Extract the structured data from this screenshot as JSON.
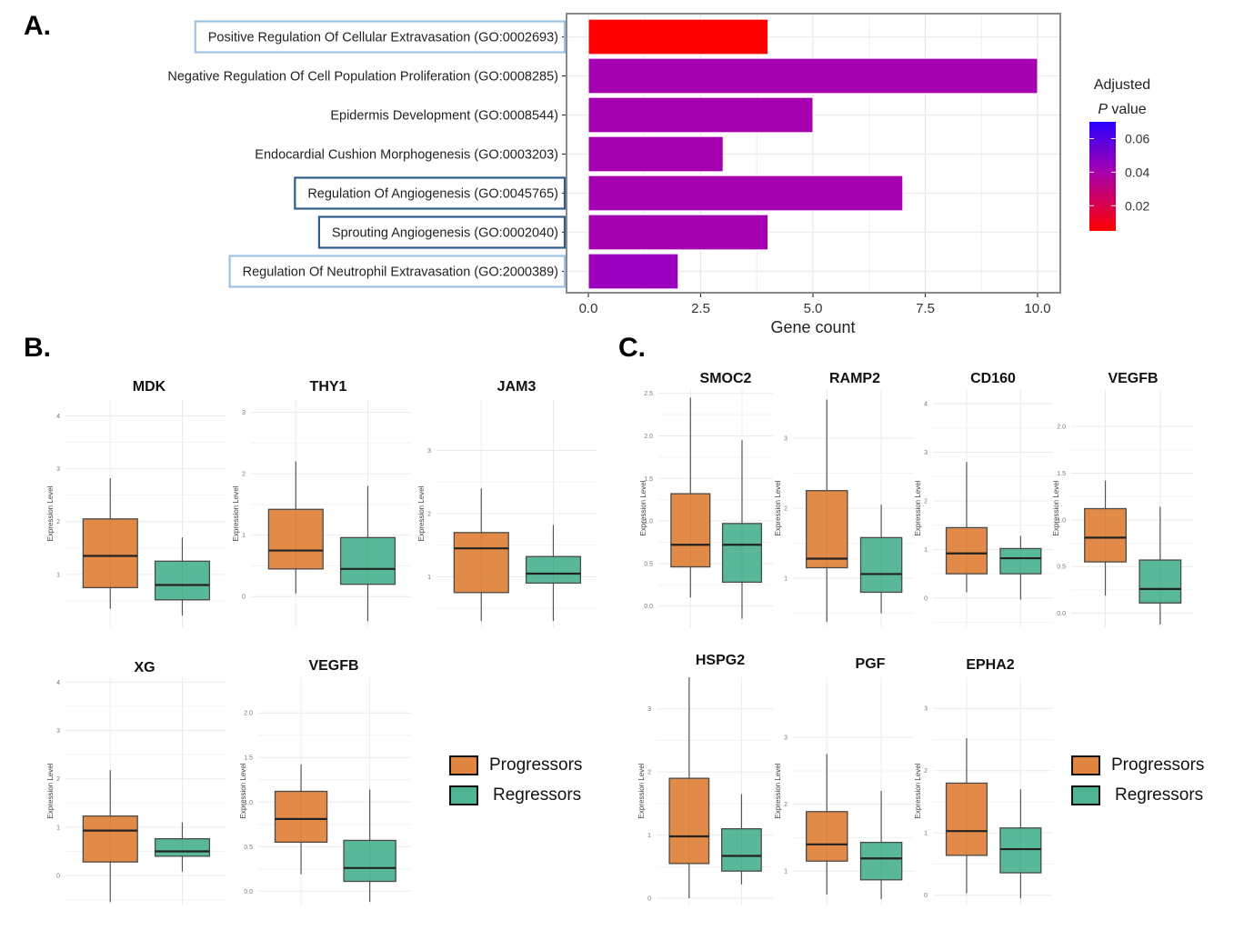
{
  "figure": {
    "panels": {
      "a_label": "A.",
      "b_label": "B.",
      "c_label": "C."
    },
    "group_legend": {
      "items": [
        {
          "label": "Progressors",
          "color": "#E0853F"
        },
        {
          "label": "Regressors",
          "color": "#4FB493"
        }
      ]
    }
  },
  "chart_data": [
    {
      "id": "A",
      "type": "bar",
      "orientation": "horizontal",
      "title": "",
      "xlabel": "Gene count",
      "ylabel": "",
      "xlim": [
        0,
        10
      ],
      "xticks": [
        "0.0",
        "2.5",
        "5.0",
        "7.5",
        "10.0"
      ],
      "grid": true,
      "categories": [
        "Positive Regulation Of Cellular Extravasation (GO:0002693)",
        "Negative Regulation Of Cell Population Proliferation (GO:0008285)",
        "Epidermis Development (GO:0008544)",
        "Endocardial Cushion Morphogenesis (GO:0003203)",
        "Regulation Of Angiogenesis (GO:0045765)",
        "Sprouting Angiogenesis (GO:0002040)",
        "Regulation Of Neutrophil Extravasation (GO:2000389)"
      ],
      "values": [
        4,
        10,
        5,
        3,
        7,
        4,
        2
      ],
      "bar_colors": [
        "#FF0000",
        "#A500B0",
        "#A500B0",
        "#A500B0",
        "#A500B0",
        "#A500B0",
        "#9B00BE"
      ],
      "highlight_boxes": [
        "light",
        "none",
        "none",
        "none",
        "dark",
        "dark",
        "light"
      ],
      "highlight_colors": {
        "light": "#9CC3E4",
        "dark": "#2F5C8A"
      },
      "colorbar": {
        "title_line1": "Adjusted",
        "title_p": "P",
        "title_rest": " value",
        "ticks": [
          "0.06",
          "0.04",
          "0.02"
        ],
        "tick_values": [
          0.06,
          0.04,
          0.02
        ],
        "range": [
          0.005,
          0.07
        ],
        "color_low": "#FF0000",
        "color_high": "#2A00FF",
        "placement": "right"
      }
    },
    {
      "id": "B",
      "type": "boxplot",
      "ylabel": "Expression Level",
      "groups": [
        "Progressors",
        "Regressors"
      ],
      "panels": [
        {
          "gene": "MDK",
          "ylim": [
            0,
            4.3
          ],
          "yticks": [
            "1",
            "2",
            "3",
            "4"
          ],
          "ytick_values": [
            1,
            2,
            3,
            4
          ],
          "boxes": [
            {
              "whisker_low": 0.35,
              "q1": 0.75,
              "median": 1.35,
              "q3": 2.05,
              "whisker_high": 2.82
            },
            {
              "whisker_low": 0.22,
              "q1": 0.52,
              "median": 0.8,
              "q3": 1.25,
              "whisker_high": 1.7
            }
          ]
        },
        {
          "gene": "THY1",
          "ylim": [
            -0.5,
            3.2
          ],
          "yticks": [
            "0",
            "1",
            "2",
            "3"
          ],
          "ytick_values": [
            0,
            1,
            2,
            3
          ],
          "boxes": [
            {
              "whisker_low": 0.05,
              "q1": 0.45,
              "median": 0.75,
              "q3": 1.42,
              "whisker_high": 2.2
            },
            {
              "whisker_low": -0.4,
              "q1": 0.2,
              "median": 0.45,
              "q3": 0.96,
              "whisker_high": 1.8
            }
          ]
        },
        {
          "gene": "JAM3",
          "ylim": [
            0.2,
            3.8
          ],
          "yticks": [
            "1",
            "2",
            "3"
          ],
          "ytick_values": [
            1,
            2,
            3
          ],
          "boxes": [
            {
              "whisker_low": 0.3,
              "q1": 0.75,
              "median": 1.45,
              "q3": 1.7,
              "whisker_high": 2.4
            },
            {
              "whisker_low": 0.3,
              "q1": 0.9,
              "median": 1.05,
              "q3": 1.32,
              "whisker_high": 1.82
            }
          ]
        },
        {
          "gene": "XG",
          "ylim": [
            -0.6,
            4.1
          ],
          "yticks": [
            "0",
            "1",
            "2",
            "3",
            "4"
          ],
          "ytick_values": [
            0,
            1,
            2,
            3,
            4
          ],
          "boxes": [
            {
              "whisker_low": -0.55,
              "q1": 0.28,
              "median": 0.93,
              "q3": 1.23,
              "whisker_high": 2.18
            },
            {
              "whisker_low": 0.08,
              "q1": 0.4,
              "median": 0.5,
              "q3": 0.76,
              "whisker_high": 1.1
            }
          ]
        },
        {
          "gene": "VEGFB",
          "ylim": [
            -0.15,
            2.4
          ],
          "yticks": [
            "0.0",
            "0.5",
            "1.0",
            "1.5",
            "2.0"
          ],
          "ytick_values": [
            0,
            0.5,
            1,
            1.5,
            2
          ],
          "boxes": [
            {
              "whisker_low": 0.19,
              "q1": 0.55,
              "median": 0.81,
              "q3": 1.12,
              "whisker_high": 1.42
            },
            {
              "whisker_low": -0.12,
              "q1": 0.11,
              "median": 0.26,
              "q3": 0.57,
              "whisker_high": 1.14
            }
          ]
        }
      ]
    },
    {
      "id": "C",
      "type": "boxplot",
      "ylabel": "Expression Level",
      "groups": [
        "Progressors",
        "Regressors"
      ],
      "panels": [
        {
          "gene": "SMOC2",
          "ylim": [
            -0.25,
            2.55
          ],
          "yticks": [
            "0.0",
            "0.5",
            "1.0",
            "1.5",
            "2.0",
            "2.5"
          ],
          "ytick_values": [
            0,
            0.5,
            1,
            1.5,
            2,
            2.5
          ],
          "boxes": [
            {
              "whisker_low": 0.1,
              "q1": 0.46,
              "median": 0.72,
              "q3": 1.32,
              "whisker_high": 2.45
            },
            {
              "whisker_low": -0.15,
              "q1": 0.28,
              "median": 0.72,
              "q3": 0.97,
              "whisker_high": 1.95
            }
          ]
        },
        {
          "gene": "RAMP2",
          "ylim": [
            0.3,
            3.7
          ],
          "yticks": [
            "1",
            "2",
            "3"
          ],
          "ytick_values": [
            1,
            2,
            3
          ],
          "boxes": [
            {
              "whisker_low": 0.38,
              "q1": 1.15,
              "median": 1.28,
              "q3": 2.25,
              "whisker_high": 3.55
            },
            {
              "whisker_low": 0.5,
              "q1": 0.8,
              "median": 1.06,
              "q3": 1.58,
              "whisker_high": 2.05
            }
          ]
        },
        {
          "gene": "CD160",
          "ylim": [
            -0.6,
            4.3
          ],
          "yticks": [
            "0",
            "1",
            "2",
            "3",
            "4"
          ],
          "ytick_values": [
            0,
            1,
            2,
            3,
            4
          ],
          "boxes": [
            {
              "whisker_low": 0.12,
              "q1": 0.5,
              "median": 0.92,
              "q3": 1.45,
              "whisker_high": 2.8
            },
            {
              "whisker_low": -0.03,
              "q1": 0.5,
              "median": 0.82,
              "q3": 1.02,
              "whisker_high": 1.28
            }
          ]
        },
        {
          "gene": "VEGFB",
          "ylim": [
            -0.15,
            2.4
          ],
          "yticks": [
            "0.0",
            "0.5",
            "1.0",
            "1.5",
            "2.0"
          ],
          "ytick_values": [
            0,
            0.5,
            1,
            1.5,
            2
          ],
          "boxes": [
            {
              "whisker_low": 0.19,
              "q1": 0.55,
              "median": 0.81,
              "q3": 1.12,
              "whisker_high": 1.42
            },
            {
              "whisker_low": -0.12,
              "q1": 0.11,
              "median": 0.26,
              "q3": 0.57,
              "whisker_high": 1.14
            }
          ]
        },
        {
          "gene": "HSPG2",
          "ylim": [
            -0.1,
            3.5
          ],
          "yticks": [
            "0",
            "1",
            "2",
            "3"
          ],
          "ytick_values": [
            0,
            1,
            2,
            3
          ],
          "boxes": [
            {
              "whisker_low": 0.0,
              "q1": 0.55,
              "median": 0.98,
              "q3": 1.9,
              "whisker_high": 3.5
            },
            {
              "whisker_low": 0.22,
              "q1": 0.43,
              "median": 0.67,
              "q3": 1.1,
              "whisker_high": 1.65
            }
          ]
        },
        {
          "gene": "PGF",
          "ylim": [
            0.5,
            3.9
          ],
          "yticks": [
            "1",
            "2",
            "3"
          ],
          "ytick_values": [
            1,
            2,
            3
          ],
          "boxes": [
            {
              "whisker_low": 0.65,
              "q1": 1.15,
              "median": 1.4,
              "q3": 1.89,
              "whisker_high": 2.75
            },
            {
              "whisker_low": 0.58,
              "q1": 0.87,
              "median": 1.19,
              "q3": 1.43,
              "whisker_high": 2.2
            }
          ]
        },
        {
          "gene": "EPHA2",
          "ylim": [
            -0.15,
            3.5
          ],
          "yticks": [
            "0",
            "1",
            "2",
            "3"
          ],
          "ytick_values": [
            0,
            1,
            2,
            3
          ],
          "boxes": [
            {
              "whisker_low": 0.03,
              "q1": 0.64,
              "median": 1.03,
              "q3": 1.8,
              "whisker_high": 2.52
            },
            {
              "whisker_low": -0.05,
              "q1": 0.36,
              "median": 0.74,
              "q3": 1.08,
              "whisker_high": 1.7
            }
          ]
        }
      ]
    }
  ]
}
